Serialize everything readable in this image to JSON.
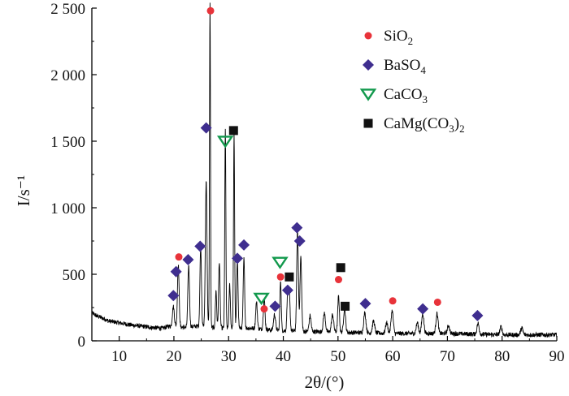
{
  "chart_data": {
    "type": "line",
    "title": "",
    "xlabel": "2θ/(°)",
    "ylabel": "I/s⁻¹",
    "xlim": [
      5,
      90
    ],
    "ylim": [
      0,
      2500
    ],
    "x_ticks": [
      10,
      20,
      30,
      40,
      50,
      60,
      70,
      80,
      90
    ],
    "x_tick_labels": [
      "10",
      "20",
      "30",
      "40",
      "50",
      "60",
      "70",
      "80",
      "90"
    ],
    "y_ticks": [
      0,
      500,
      1000,
      1500,
      2000,
      2500
    ],
    "y_tick_labels": [
      "0",
      "500",
      "1 000",
      "1 500",
      "2 000",
      "2 500"
    ],
    "grid": false,
    "legend_position": "top-right",
    "pattern": {
      "background": [
        [
          5,
          210
        ],
        [
          6,
          185
        ],
        [
          7,
          170
        ],
        [
          8,
          150
        ],
        [
          10,
          135
        ],
        [
          12,
          120
        ],
        [
          14,
          110
        ],
        [
          16,
          100
        ],
        [
          18,
          95
        ],
        [
          19,
          110
        ],
        [
          22,
          100
        ],
        [
          24,
          110
        ],
        [
          28,
          95
        ],
        [
          34,
          95
        ],
        [
          38,
          80
        ],
        [
          44,
          70
        ],
        [
          50,
          65
        ],
        [
          60,
          55
        ],
        [
          70,
          55
        ],
        [
          80,
          45
        ],
        [
          90,
          45
        ]
      ],
      "peaks": [
        [
          19.9,
          150,
          0.18
        ],
        [
          20.8,
          470,
          0.15
        ],
        [
          22.7,
          460,
          0.15
        ],
        [
          24.9,
          600,
          0.14
        ],
        [
          25.9,
          1100,
          0.15
        ],
        [
          26.6,
          2430,
          0.09
        ],
        [
          27.7,
          280,
          0.12
        ],
        [
          28.3,
          500,
          0.13
        ],
        [
          29.4,
          1490,
          0.1
        ],
        [
          30.2,
          330,
          0.12
        ],
        [
          31.0,
          1450,
          0.1
        ],
        [
          31.6,
          500,
          0.13
        ],
        [
          32.8,
          520,
          0.13
        ],
        [
          35.1,
          200,
          0.15
        ],
        [
          36.5,
          230,
          0.15
        ],
        [
          38.4,
          120,
          0.18
        ],
        [
          39.5,
          380,
          0.12
        ],
        [
          40.8,
          300,
          0.13
        ],
        [
          41.1,
          270,
          0.14
        ],
        [
          42.6,
          760,
          0.15
        ],
        [
          43.2,
          560,
          0.15
        ],
        [
          44.9,
          120,
          0.18
        ],
        [
          47.5,
          140,
          0.2
        ],
        [
          49.0,
          130,
          0.2
        ],
        [
          50.1,
          270,
          0.15
        ],
        [
          51.2,
          180,
          0.18
        ],
        [
          54.9,
          150,
          0.2
        ],
        [
          56.5,
          90,
          0.2
        ],
        [
          58.9,
          80,
          0.2
        ],
        [
          59.9,
          170,
          0.2
        ],
        [
          64.5,
          80,
          0.2
        ],
        [
          65.5,
          150,
          0.2
        ],
        [
          68.1,
          150,
          0.2
        ],
        [
          70.2,
          60,
          0.2
        ],
        [
          75.6,
          80,
          0.2
        ],
        [
          79.8,
          60,
          0.2
        ],
        [
          83.6,
          50,
          0.2
        ]
      ]
    },
    "series": [
      {
        "name": "SiO2",
        "label_main": "SiO",
        "label_sub": "2",
        "label_rest": "",
        "marker": "circle",
        "color": "#e8333a",
        "points": [
          [
            20.9,
            630
          ],
          [
            26.7,
            2480
          ],
          [
            36.5,
            240
          ],
          [
            39.5,
            480
          ],
          [
            50.1,
            460
          ],
          [
            60.0,
            300
          ],
          [
            68.2,
            290
          ]
        ]
      },
      {
        "name": "BaSO4",
        "label_main": "BaSO",
        "label_sub": "4",
        "label_rest": "",
        "marker": "diamond",
        "color": "#3f2e8f",
        "points": [
          [
            19.9,
            340
          ],
          [
            20.4,
            520
          ],
          [
            22.6,
            610
          ],
          [
            24.8,
            710
          ],
          [
            25.9,
            1600
          ],
          [
            31.6,
            620
          ],
          [
            32.8,
            720
          ],
          [
            38.5,
            260
          ],
          [
            40.8,
            380
          ],
          [
            42.5,
            850
          ],
          [
            43.0,
            750
          ],
          [
            55.0,
            280
          ],
          [
            65.5,
            240
          ],
          [
            75.5,
            190
          ]
        ]
      },
      {
        "name": "CaCO3",
        "label_main": "CaCO",
        "label_sub": "3",
        "label_rest": "",
        "marker": "triangle-down",
        "color": "#12994d",
        "points": [
          [
            29.4,
            1500
          ],
          [
            36.0,
            320
          ],
          [
            39.4,
            590
          ]
        ]
      },
      {
        "name": "CaMg(CO3)2",
        "label_main": "CaMg(CO",
        "label_sub": "3",
        "label_rest": ")",
        "label_sub2": "2",
        "marker": "square",
        "color": "#111111",
        "points": [
          [
            30.9,
            1580
          ],
          [
            41.1,
            480
          ],
          [
            50.5,
            550
          ],
          [
            51.3,
            260
          ]
        ]
      }
    ]
  }
}
